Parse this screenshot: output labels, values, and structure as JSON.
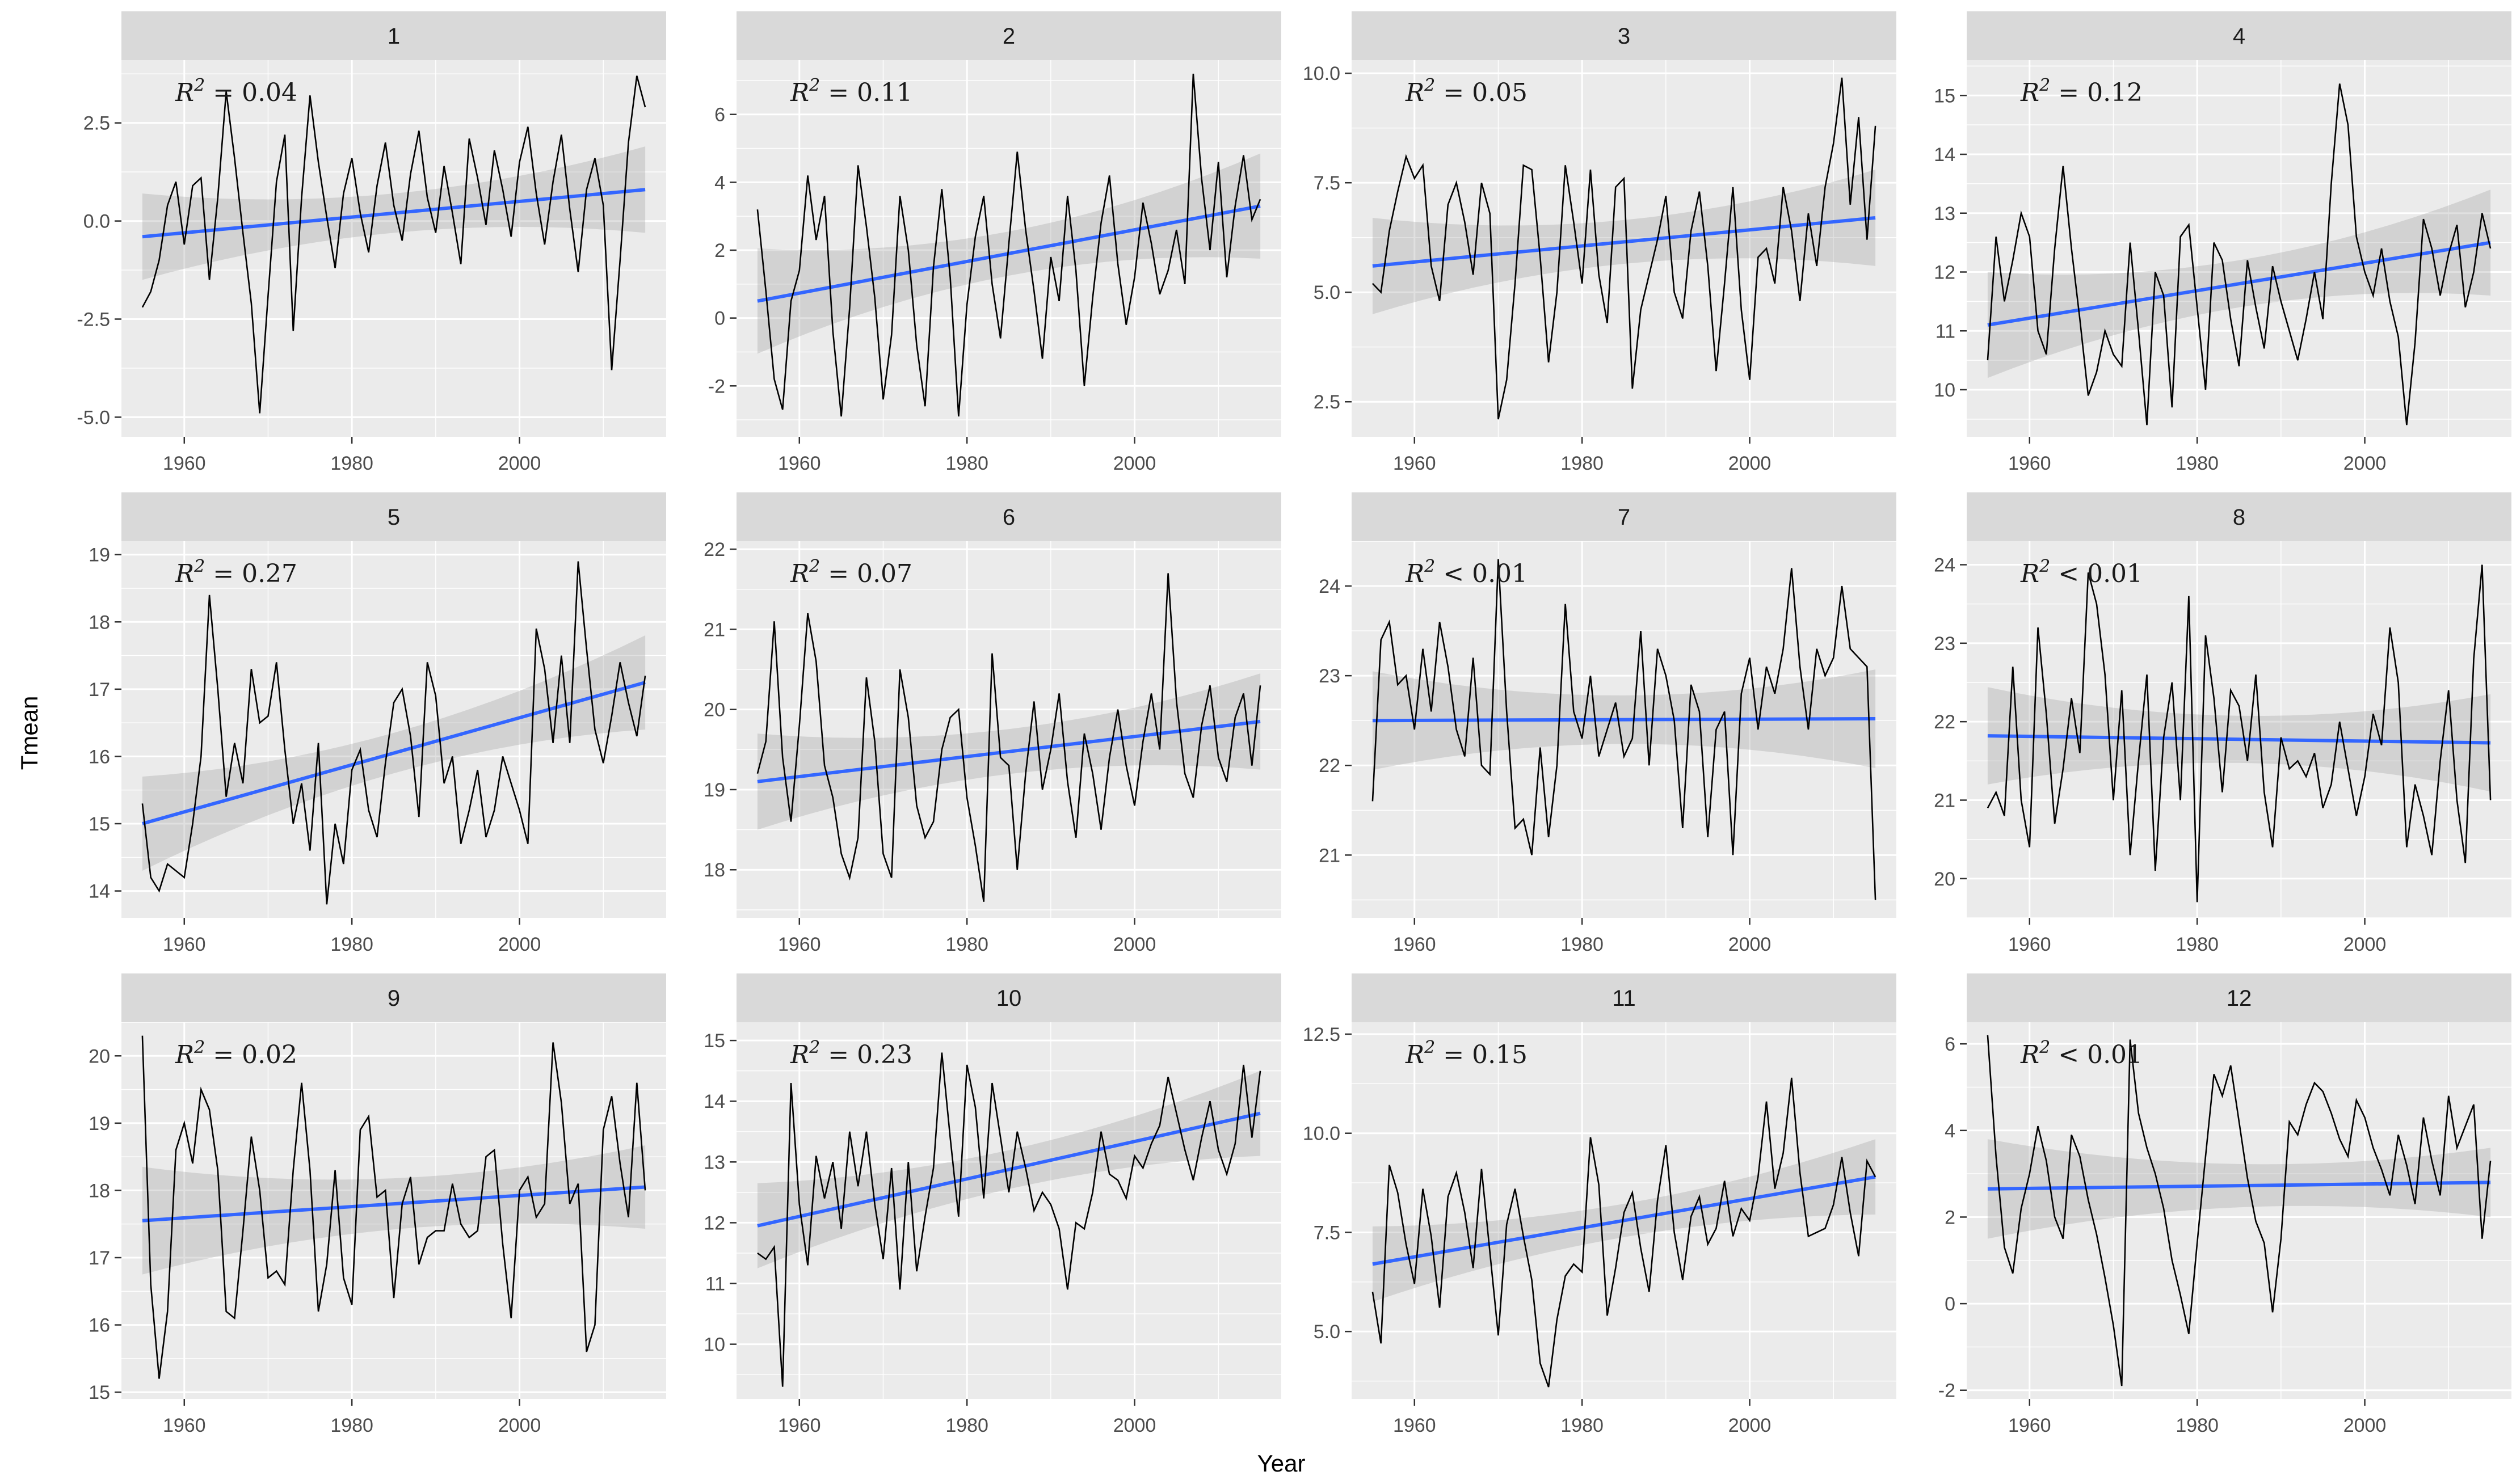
{
  "figure": {
    "xlabel": "Year",
    "ylabel": "Tmean",
    "x_ticks": [
      1960,
      1980,
      2000
    ],
    "x_tick_labels": [
      "1960",
      "1980",
      "2000"
    ],
    "x_minor": [
      1970,
      1990,
      2010
    ],
    "x_domain": [
      1952.5,
      2017.5
    ],
    "colors": {
      "panel_bg": "#EBEBEB",
      "strip_bg": "#D9D9D9",
      "grid": "#FFFFFF",
      "data_line": "#000000",
      "trend_line": "#3366FF",
      "ribbon": "#9E9E9E",
      "tick_mark": "#333333",
      "tick_label": "#4D4D4D",
      "strip_text": "#1A1A1A",
      "annotation_text": "#1A1A1A"
    }
  },
  "chart_data": {
    "type": "line",
    "title": "",
    "xlabel": "Year",
    "ylabel": "Tmean",
    "x": [
      1955,
      1956,
      1957,
      1958,
      1959,
      1960,
      1961,
      1962,
      1963,
      1964,
      1965,
      1966,
      1967,
      1968,
      1969,
      1970,
      1971,
      1972,
      1973,
      1974,
      1975,
      1976,
      1977,
      1978,
      1979,
      1980,
      1981,
      1982,
      1983,
      1984,
      1985,
      1986,
      1987,
      1988,
      1989,
      1990,
      1991,
      1992,
      1993,
      1994,
      1995,
      1996,
      1997,
      1998,
      1999,
      2000,
      2001,
      2002,
      2003,
      2004,
      2005,
      2006,
      2007,
      2008,
      2009,
      2010,
      2011,
      2012,
      2013,
      2014,
      2015
    ],
    "facets": [
      {
        "label": "1",
        "r2_base": "R",
        "r2_sup": "2",
        "r2_rest": " = 0.04",
        "y_tick_vals": [
          2.5,
          0.0,
          -2.5,
          -5.0
        ],
        "y_tick_labels": [
          "2.5",
          "0.0",
          "-2.5",
          "-5.0"
        ],
        "y_domain": [
          -5.5,
          4.1
        ],
        "trend": [
          -0.4,
          0.8
        ],
        "ribbon": [
          1.1,
          0.5,
          1.1
        ],
        "values": [
          -2.2,
          -1.8,
          -1.0,
          0.4,
          1.0,
          -0.6,
          0.9,
          1.1,
          -1.5,
          0.6,
          3.3,
          1.6,
          -0.3,
          -2.1,
          -4.9,
          -1.9,
          1.0,
          2.2,
          -2.8,
          0.6,
          3.2,
          1.5,
          0.1,
          -1.2,
          0.7,
          1.6,
          0.2,
          -0.8,
          0.9,
          2.0,
          0.4,
          -0.5,
          1.2,
          2.3,
          0.6,
          -0.3,
          1.4,
          0.2,
          -1.1,
          2.1,
          1.1,
          -0.1,
          1.8,
          0.8,
          -0.4,
          1.5,
          2.4,
          0.7,
          -0.6,
          1.0,
          2.2,
          0.3,
          -1.3,
          0.8,
          1.6,
          0.4,
          -3.8,
          -1.0,
          2.0,
          3.7,
          2.9
        ]
      },
      {
        "label": "2",
        "r2_base": "R",
        "r2_sup": "2",
        "r2_rest": " = 0.11",
        "y_tick_vals": [
          6,
          4,
          2,
          0,
          -2
        ],
        "y_tick_labels": [
          "6",
          "4",
          "2",
          "0",
          "-2"
        ],
        "y_domain": [
          -3.5,
          7.6
        ],
        "trend": [
          0.5,
          3.3
        ],
        "ribbon": [
          1.55,
          0.65,
          1.55
        ],
        "values": [
          3.2,
          0.8,
          -1.8,
          -2.7,
          0.5,
          1.4,
          4.2,
          2.3,
          3.6,
          -0.4,
          -2.9,
          0.3,
          4.5,
          2.7,
          0.6,
          -2.4,
          -0.5,
          3.6,
          2.0,
          -0.8,
          -2.6,
          1.5,
          3.8,
          1.2,
          -2.9,
          0.4,
          2.4,
          3.6,
          1.0,
          -0.6,
          2.2,
          4.9,
          2.6,
          0.8,
          -1.2,
          1.8,
          0.5,
          3.6,
          1.4,
          -2.0,
          0.6,
          2.8,
          4.2,
          1.6,
          -0.2,
          1.2,
          3.4,
          2.2,
          0.7,
          1.4,
          2.6,
          1.0,
          7.2,
          4.1,
          2.0,
          4.6,
          1.2,
          3.3,
          4.8,
          2.9,
          3.5
        ]
      },
      {
        "label": "3",
        "r2_base": "R",
        "r2_sup": "2",
        "r2_rest": " = 0.05",
        "y_tick_vals": [
          10.0,
          7.5,
          5.0,
          2.5
        ],
        "y_tick_labels": [
          "10.0",
          "7.5",
          "5.0",
          "2.5"
        ],
        "y_domain": [
          1.7,
          10.3
        ],
        "trend": [
          5.6,
          6.7
        ],
        "ribbon": [
          1.1,
          0.5,
          1.1
        ],
        "values": [
          5.2,
          5.0,
          6.4,
          7.3,
          8.1,
          7.6,
          7.9,
          5.6,
          4.8,
          7.0,
          7.5,
          6.6,
          5.4,
          7.5,
          6.8,
          2.1,
          3.0,
          5.2,
          7.9,
          7.8,
          5.8,
          3.4,
          5.0,
          7.9,
          6.6,
          5.2,
          7.8,
          5.4,
          4.3,
          7.4,
          7.6,
          2.8,
          4.6,
          5.4,
          6.2,
          7.2,
          5.0,
          4.4,
          6.4,
          7.3,
          5.6,
          3.2,
          5.2,
          7.4,
          4.6,
          3.0,
          5.8,
          6.0,
          5.2,
          7.4,
          6.4,
          4.8,
          6.8,
          5.6,
          7.4,
          8.4,
          9.9,
          7.0,
          9.0,
          6.2,
          8.8
        ]
      },
      {
        "label": "4",
        "r2_base": "R",
        "r2_sup": "2",
        "r2_rest": " = 0.12",
        "y_tick_vals": [
          15,
          14,
          13,
          12,
          11,
          10
        ],
        "y_tick_labels": [
          "15",
          "14",
          "13",
          "12",
          "11",
          "10"
        ],
        "y_domain": [
          9.2,
          15.6
        ],
        "trend": [
          11.1,
          12.5
        ],
        "ribbon": [
          0.9,
          0.4,
          0.9
        ],
        "values": [
          10.5,
          12.6,
          11.5,
          12.2,
          13.0,
          12.6,
          11.0,
          10.6,
          12.4,
          13.8,
          12.4,
          11.2,
          9.9,
          10.3,
          11.0,
          10.6,
          10.4,
          12.5,
          11.0,
          9.4,
          12.0,
          11.6,
          9.7,
          12.6,
          12.8,
          11.4,
          10.0,
          12.5,
          12.2,
          11.2,
          10.4,
          12.2,
          11.4,
          10.7,
          12.1,
          11.5,
          11.0,
          10.5,
          11.2,
          12.0,
          11.2,
          13.5,
          15.2,
          14.5,
          12.6,
          12.0,
          11.6,
          12.4,
          11.5,
          10.9,
          9.4,
          10.8,
          12.9,
          12.4,
          11.6,
          12.3,
          12.8,
          11.4,
          12.0,
          13.0,
          12.4
        ]
      },
      {
        "label": "5",
        "r2_base": "R",
        "r2_sup": "2",
        "r2_rest": " = 0.27",
        "y_tick_vals": [
          19,
          18,
          17,
          16,
          15,
          14
        ],
        "y_tick_labels": [
          "19",
          "18",
          "17",
          "16",
          "15",
          "14"
        ],
        "y_domain": [
          13.6,
          19.2
        ],
        "trend": [
          15.0,
          17.1
        ],
        "ribbon": [
          0.7,
          0.3,
          0.7
        ],
        "values": [
          15.3,
          14.2,
          14.0,
          14.4,
          14.3,
          14.2,
          15.0,
          16.0,
          18.4,
          17.0,
          15.4,
          16.2,
          15.6,
          17.3,
          16.5,
          16.6,
          17.4,
          16.1,
          15.0,
          15.6,
          14.6,
          16.2,
          13.8,
          15.0,
          14.4,
          15.8,
          16.1,
          15.2,
          14.8,
          15.9,
          16.8,
          17.0,
          16.3,
          15.1,
          17.4,
          16.9,
          15.6,
          16.0,
          14.7,
          15.2,
          15.8,
          14.8,
          15.2,
          16.0,
          15.6,
          15.2,
          14.7,
          17.9,
          17.3,
          16.2,
          17.5,
          16.2,
          18.9,
          17.6,
          16.4,
          15.9,
          16.6,
          17.4,
          16.8,
          16.3,
          17.2
        ]
      },
      {
        "label": "6",
        "r2_base": "R",
        "r2_sup": "2",
        "r2_rest": " = 0.07",
        "y_tick_vals": [
          22,
          21,
          20,
          19,
          18
        ],
        "y_tick_labels": [
          "22",
          "21",
          "20",
          "19",
          "18"
        ],
        "y_domain": [
          17.4,
          22.1
        ],
        "trend": [
          19.1,
          19.85
        ],
        "ribbon": [
          0.6,
          0.28,
          0.6
        ],
        "values": [
          19.2,
          19.6,
          21.1,
          19.4,
          18.6,
          19.8,
          21.2,
          20.6,
          19.3,
          18.9,
          18.2,
          17.9,
          18.4,
          20.4,
          19.6,
          18.2,
          17.9,
          20.5,
          19.9,
          18.8,
          18.4,
          18.6,
          19.5,
          19.9,
          20.0,
          18.9,
          18.3,
          17.6,
          20.7,
          19.4,
          19.3,
          18.0,
          19.2,
          20.1,
          19.0,
          19.5,
          20.2,
          19.1,
          18.4,
          19.7,
          19.2,
          18.5,
          19.4,
          20.0,
          19.3,
          18.8,
          19.6,
          20.2,
          19.5,
          21.7,
          20.1,
          19.2,
          18.9,
          19.8,
          20.3,
          19.4,
          19.1,
          19.9,
          20.2,
          19.3,
          20.3
        ]
      },
      {
        "label": "7",
        "r2_base": "R",
        "r2_sup": "2",
        "r2_rest": " < 0.01",
        "y_tick_vals": [
          24,
          23,
          22,
          21
        ],
        "y_tick_labels": [
          "24",
          "23",
          "22",
          "21"
        ],
        "y_domain": [
          20.3,
          24.5
        ],
        "trend": [
          22.5,
          22.52
        ],
        "ribbon": [
          0.55,
          0.27,
          0.55
        ],
        "values": [
          21.6,
          23.4,
          23.6,
          22.9,
          23.0,
          22.4,
          23.3,
          22.6,
          23.6,
          23.1,
          22.4,
          22.1,
          23.2,
          22.0,
          21.9,
          24.3,
          22.6,
          21.3,
          21.4,
          21.0,
          22.2,
          21.2,
          22.0,
          23.8,
          22.6,
          22.3,
          23.0,
          22.1,
          22.4,
          22.7,
          22.1,
          22.3,
          23.5,
          22.0,
          23.3,
          23.0,
          22.5,
          21.3,
          22.9,
          22.6,
          21.2,
          22.4,
          22.6,
          21.0,
          22.8,
          23.2,
          22.4,
          23.1,
          22.8,
          23.3,
          24.2,
          23.1,
          22.4,
          23.3,
          23.0,
          23.2,
          24.0,
          23.3,
          23.2,
          23.1,
          20.5
        ]
      },
      {
        "label": "8",
        "r2_base": "R",
        "r2_sup": "2",
        "r2_rest": " < 0.01",
        "y_tick_vals": [
          24,
          23,
          22,
          21,
          20
        ],
        "y_tick_labels": [
          "24",
          "23",
          "22",
          "21",
          "20"
        ],
        "y_domain": [
          19.5,
          24.3
        ],
        "trend": [
          21.82,
          21.73
        ],
        "ribbon": [
          0.62,
          0.3,
          0.62
        ],
        "values": [
          20.9,
          21.1,
          20.8,
          22.7,
          21.0,
          20.4,
          23.2,
          22.1,
          20.7,
          21.4,
          22.3,
          21.6,
          23.9,
          23.5,
          22.6,
          21.0,
          22.4,
          20.3,
          21.5,
          22.6,
          20.1,
          21.8,
          22.5,
          21.0,
          23.6,
          19.7,
          23.1,
          22.3,
          21.1,
          22.4,
          22.2,
          21.5,
          22.6,
          21.1,
          20.4,
          21.8,
          21.4,
          21.5,
          21.3,
          21.6,
          20.9,
          21.2,
          22.0,
          21.4,
          20.8,
          21.3,
          22.1,
          21.7,
          23.2,
          22.5,
          20.4,
          21.2,
          20.8,
          20.3,
          21.5,
          22.4,
          21.0,
          20.2,
          22.8,
          24.0,
          21.0
        ]
      },
      {
        "label": "9",
        "r2_base": "R",
        "r2_sup": "2",
        "r2_rest": " = 0.02",
        "y_tick_vals": [
          20,
          19,
          18,
          17,
          16,
          15
        ],
        "y_tick_labels": [
          "20",
          "19",
          "18",
          "17",
          "16",
          "15"
        ],
        "y_domain": [
          14.9,
          20.5
        ],
        "trend": [
          17.55,
          18.05
        ],
        "ribbon": [
          0.8,
          0.38,
          0.62
        ],
        "values": [
          20.3,
          16.6,
          15.2,
          16.2,
          18.6,
          19.0,
          18.4,
          19.5,
          19.2,
          18.3,
          16.2,
          16.1,
          17.4,
          18.8,
          18.0,
          16.7,
          16.8,
          16.6,
          18.3,
          19.6,
          18.3,
          16.2,
          16.9,
          18.3,
          16.7,
          16.3,
          18.9,
          19.1,
          17.9,
          18.0,
          16.4,
          17.8,
          18.2,
          16.9,
          17.3,
          17.4,
          17.4,
          18.1,
          17.5,
          17.3,
          17.4,
          18.5,
          18.6,
          17.2,
          16.1,
          18.0,
          18.2,
          17.6,
          17.8,
          20.2,
          19.3,
          17.8,
          18.1,
          15.6,
          16.0,
          18.9,
          19.4,
          18.4,
          17.6,
          19.6,
          18.0
        ]
      },
      {
        "label": "10",
        "r2_base": "R",
        "r2_sup": "2",
        "r2_rest": " = 0.23",
        "y_tick_vals": [
          15,
          14,
          13,
          12,
          11,
          10
        ],
        "y_tick_labels": [
          "15",
          "14",
          "13",
          "12",
          "11",
          "10"
        ],
        "y_domain": [
          9.1,
          15.3
        ],
        "trend": [
          11.95,
          13.8
        ],
        "ribbon": [
          0.7,
          0.32,
          0.7
        ],
        "values": [
          11.5,
          11.4,
          11.6,
          9.3,
          14.3,
          12.3,
          11.3,
          13.1,
          12.4,
          13.0,
          11.9,
          13.5,
          12.6,
          13.5,
          12.3,
          11.4,
          12.9,
          10.9,
          13.0,
          11.2,
          12.1,
          12.9,
          14.8,
          13.4,
          12.1,
          14.6,
          13.9,
          12.4,
          14.3,
          13.4,
          12.5,
          13.5,
          12.9,
          12.2,
          12.5,
          12.3,
          11.9,
          10.9,
          12.0,
          11.9,
          12.5,
          13.5,
          12.8,
          12.7,
          12.4,
          13.1,
          12.9,
          13.3,
          13.6,
          14.4,
          13.8,
          13.2,
          12.7,
          13.4,
          14.0,
          13.2,
          12.8,
          13.3,
          14.6,
          13.4,
          14.5
        ]
      },
      {
        "label": "11",
        "r2_base": "R",
        "r2_sup": "2",
        "r2_rest": " = 0.15",
        "y_tick_vals": [
          12.5,
          10.0,
          7.5,
          5.0
        ],
        "y_tick_labels": [
          "12.5",
          "10.0",
          "7.5",
          "5.0"
        ],
        "y_domain": [
          3.3,
          12.8
        ],
        "trend": [
          6.7,
          8.9
        ],
        "ribbon": [
          0.95,
          0.42,
          0.95
        ],
        "values": [
          6.0,
          4.7,
          9.2,
          8.5,
          7.2,
          6.2,
          8.6,
          7.4,
          5.6,
          8.4,
          9.0,
          8.0,
          6.6,
          9.1,
          7.0,
          4.9,
          7.7,
          8.6,
          7.4,
          6.3,
          4.2,
          3.6,
          5.3,
          6.4,
          6.7,
          6.5,
          9.9,
          8.7,
          5.4,
          6.6,
          8.0,
          8.5,
          7.1,
          6.0,
          8.3,
          9.7,
          7.5,
          6.3,
          7.9,
          8.4,
          7.2,
          7.6,
          8.8,
          7.4,
          8.1,
          7.8,
          8.9,
          10.8,
          8.6,
          9.5,
          11.4,
          9.0,
          7.4,
          7.5,
          7.6,
          8.2,
          9.4,
          8.0,
          6.9,
          9.3,
          8.9
        ]
      },
      {
        "label": "12",
        "r2_base": "R",
        "r2_sup": "2",
        "r2_rest": " < 0.01",
        "y_tick_vals": [
          6,
          4,
          2,
          0,
          -2
        ],
        "y_tick_labels": [
          "6",
          "4",
          "2",
          "0",
          "-2"
        ],
        "y_domain": [
          -2.2,
          6.5
        ],
        "trend": [
          2.65,
          2.8
        ],
        "ribbon": [
          1.15,
          0.5,
          0.8
        ],
        "values": [
          6.2,
          3.4,
          1.3,
          0.7,
          2.2,
          3.0,
          4.1,
          3.3,
          2.0,
          1.5,
          3.9,
          3.4,
          2.4,
          1.6,
          0.6,
          -0.5,
          -1.9,
          6.1,
          4.4,
          3.6,
          3.0,
          2.2,
          1.0,
          0.2,
          -0.7,
          1.4,
          3.4,
          5.3,
          4.8,
          5.5,
          4.2,
          2.9,
          1.9,
          1.4,
          -0.2,
          1.5,
          4.2,
          3.9,
          4.6,
          5.1,
          4.9,
          4.4,
          3.8,
          3.4,
          4.7,
          4.3,
          3.6,
          3.1,
          2.5,
          3.9,
          3.2,
          2.3,
          4.3,
          3.3,
          2.5,
          4.8,
          3.6,
          4.1,
          4.6,
          1.5,
          3.3
        ]
      }
    ]
  }
}
